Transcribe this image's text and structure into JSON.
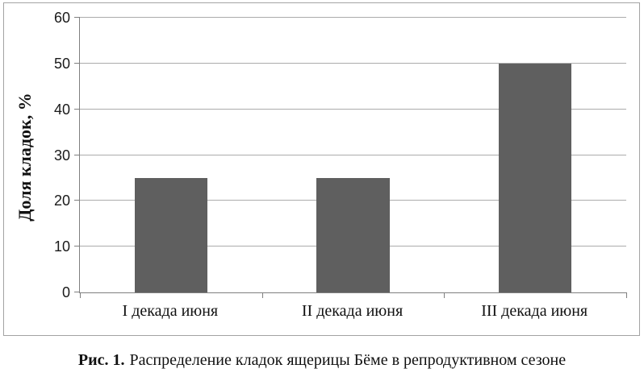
{
  "figure": {
    "caption_label": "Рис. 1.",
    "caption_text": "Распределение кладок ящерицы Бёме в репродуктивном сезоне"
  },
  "chart_data": {
    "type": "bar",
    "title": "",
    "categories": [
      "I декада июня",
      "II декада июня",
      "III декада июня"
    ],
    "values": [
      25,
      25,
      50
    ],
    "xlabel": "",
    "ylabel": "Доля кладок, %",
    "ylim": [
      0,
      60
    ],
    "yticks": [
      0,
      10,
      20,
      30,
      40,
      50,
      60
    ],
    "grid": "horizontal",
    "legend": "none",
    "colors": {
      "bar": "#5f5f5f",
      "gridline": "#ababab",
      "axis": "#7f7f7f",
      "frame_border": "#a3a3a3",
      "text": "#111111"
    }
  }
}
